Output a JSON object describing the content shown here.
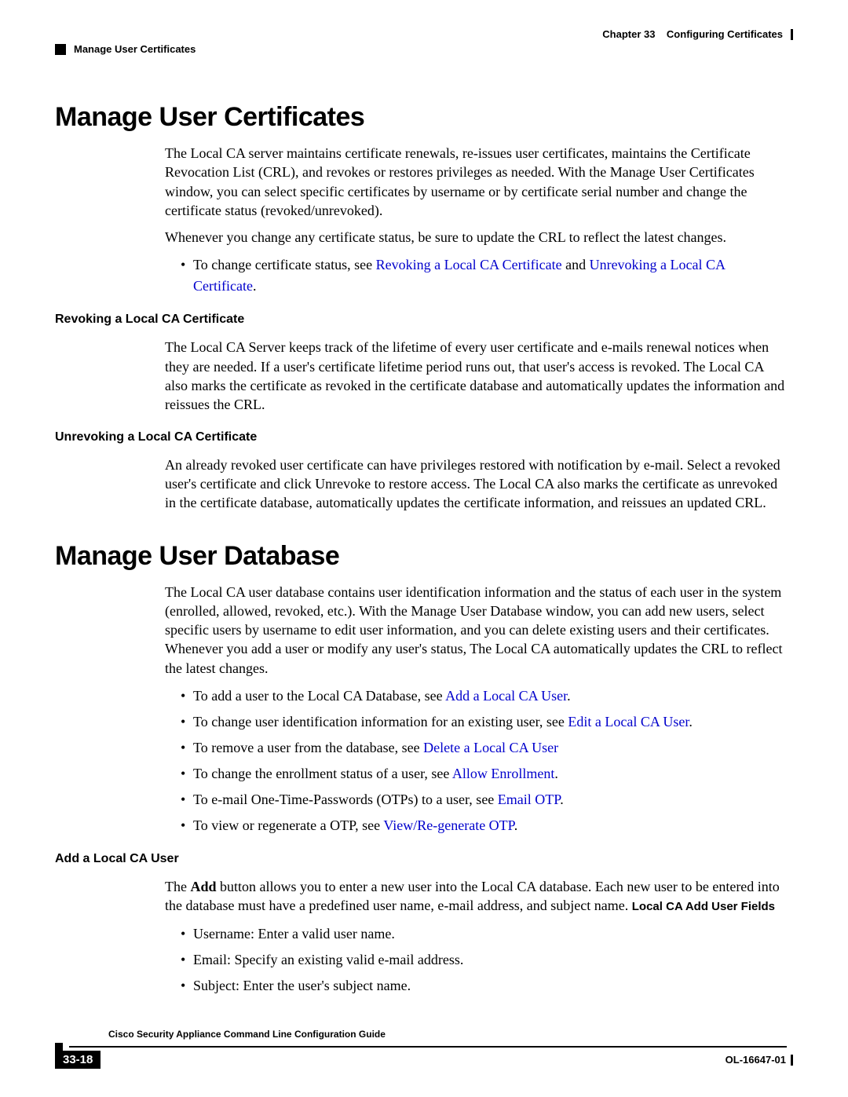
{
  "header": {
    "chapter_label": "Chapter 33",
    "chapter_title": "Configuring Certificates",
    "breadcrumb": "Manage User Certificates"
  },
  "section1": {
    "title": "Manage User Certificates",
    "p1": "The Local CA server maintains certificate renewals, re-issues user certificates, maintains the Certificate Revocation List (CRL), and revokes or restores privileges as needed. With the Manage User Certificates window, you can select specific certificates by username or by certificate serial number and change the certificate status (revoked/unrevoked).",
    "p2": "Whenever you change any certificate status, be sure to update the CRL to reflect the latest changes.",
    "bullet1_pre": "To change certificate status, see ",
    "bullet1_link1": "Revoking a Local CA Certificate",
    "bullet1_mid": " and ",
    "bullet1_link2": "Unrevoking a Local CA Certificate",
    "bullet1_post": ".",
    "sub1_title": "Revoking a Local CA Certificate",
    "sub1_p": "The Local CA Server keeps track of the lifetime of every user certificate and e-mails renewal notices when they are needed. If a user's certificate lifetime period runs out, that user's access is revoked. The Local CA also marks the certificate as revoked in the certificate database and automatically updates the information and reissues the CRL.",
    "sub2_title": "Unrevoking a Local CA Certificate",
    "sub2_p": "An already revoked user certificate can have privileges restored with notification by e-mail. Select a revoked user's certificate and click Unrevoke to restore access. The Local CA also marks the certificate as unrevoked in the certificate database, automatically updates the certificate information, and reissues an updated CRL."
  },
  "section2": {
    "title": "Manage User Database",
    "p1": "The Local CA user database contains user identification information and the status of each user in the system (enrolled, allowed, revoked, etc.). With the Manage User Database window, you can add new users, select specific users by username to edit user information, and you can delete existing users and their certificates. Whenever you add a user or modify any user's status, The Local CA automatically updates the CRL to reflect the latest changes.",
    "bullets": [
      {
        "pre": "To add a user to the Local CA Database, see ",
        "link": "Add a Local CA User",
        "post": "."
      },
      {
        "pre": "To change user identification information for an existing user, see ",
        "link": "Edit a Local CA User",
        "post": "."
      },
      {
        "pre": "To remove a user from the database, see ",
        "link": "Delete a Local CA User",
        "post": ""
      },
      {
        "pre": "To change the enrollment status of a user, see ",
        "link": "Allow Enrollment",
        "post": "."
      },
      {
        "pre": "To e-mail One-Time-Passwords (OTPs) to a user, see ",
        "link": "Email OTP",
        "post": "."
      },
      {
        "pre": "To view or regenerate a OTP, see ",
        "link": "View/Re-generate OTP",
        "post": "."
      }
    ],
    "sub1_title": "Add a Local CA User",
    "sub1_p_pre": "The ",
    "sub1_p_bold": "Add",
    "sub1_p_mid": " button allows you to enter a new user into the Local CA database. Each new user to be entered into the database must have a predefined user name, e-mail address, and subject name. ",
    "sub1_runin": "Local CA Add User Fields",
    "sub1_bullets": [
      "Username: Enter a valid user name.",
      "Email: Specify an existing valid e-mail address.",
      "Subject: Enter the user's subject name."
    ]
  },
  "footer": {
    "guide_title": "Cisco Security Appliance Command Line Configuration Guide",
    "page_number": "33-18",
    "doc_id": "OL-16647-01"
  },
  "style": {
    "link_color": "#0000cc",
    "text_color": "#000000",
    "background": "#ffffff",
    "h1_fontsize": 34,
    "h3_fontsize": 16,
    "body_fontsize": 18,
    "footer_fontsize": 12
  }
}
